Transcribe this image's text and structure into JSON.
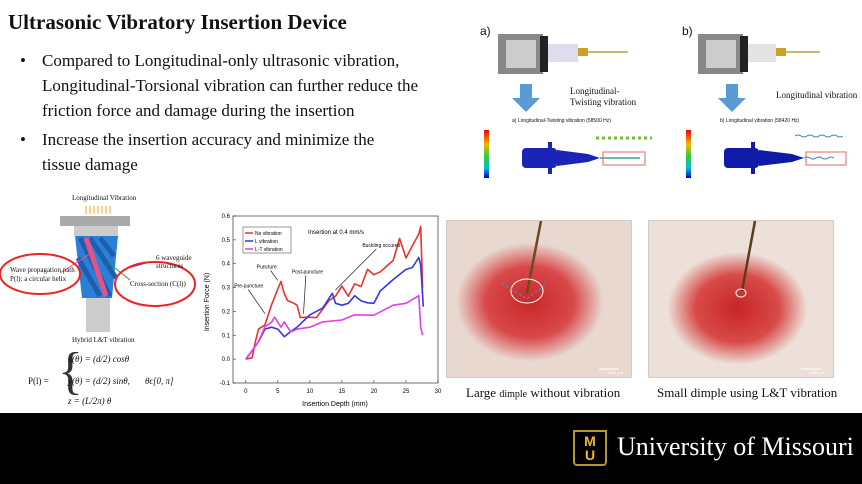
{
  "title": "Ultrasonic Vibratory Insertion Device",
  "bullets": [
    "Compared to Longitudinal-only ultrasonic vibration, Longitudinal-Torsional vibration can further reduce the friction force and damage during the insertion",
    "Increase the insertion accuracy and minimize the tissue damage"
  ],
  "diagram": {
    "top_label": "Longitudinal Vibration",
    "waveguide_label": "6 waveguide structures",
    "path_label": "Wave propagation path P(l): a circular helix",
    "cross_label": "Cross-section (C(l))",
    "bottom_label": "Hybrid L&T vibration",
    "eq_lhs": "P(l) =",
    "eq1": "x(θ) = (d/2) cosθ",
    "eq2": "y(θ) = (d/2) sinθ,",
    "eq3": "z = (L/2π) θ",
    "eq_range": "θϵ[0, π]"
  },
  "sim": {
    "a_label": "a)",
    "b_label": "b)",
    "a_arrow_text": "Longitudinal-Twisting vibration",
    "b_arrow_text": "Longitudinal vibration",
    "a_caption": "a) Longitudinal-Twisting vibration (58500 Hz)",
    "b_caption": "b) Longitudinal vibration (58420 Hz)"
  },
  "photos": {
    "left_caption_1": "Large ",
    "left_caption_2": "dimple",
    "left_caption_3": " without vibration",
    "right_caption": "Small dimple using L&T vibration",
    "scale_left": "1000 μm",
    "scale_right": "1000 μm"
  },
  "footer": {
    "university": "University of Missouri",
    "logo_text": "MU",
    "bg": "#000000",
    "gold": "#f1b82d"
  },
  "chart_data": {
    "type": "line",
    "title": "Insertion at 0.4 mm/s",
    "xlabel": "Insertion Depth (mm)",
    "ylabel": "Insertion Force (N)",
    "xlim": [
      -2,
      30
    ],
    "ylim": [
      -0.1,
      0.6
    ],
    "xticks": [
      0,
      5,
      10,
      15,
      20,
      25,
      30
    ],
    "yticks": [
      -0.1,
      0.0,
      0.1,
      0.2,
      0.3,
      0.4,
      0.5,
      0.6
    ],
    "legend": "top-left",
    "series": [
      {
        "name": "No vibration",
        "color": "#e8322d",
        "points": [
          [
            0,
            0
          ],
          [
            1,
            0
          ],
          [
            1.5,
            0.08
          ],
          [
            2,
            0.12
          ],
          [
            3,
            0.15
          ],
          [
            4,
            0.22
          ],
          [
            5,
            0.3
          ],
          [
            5.5,
            0.32
          ],
          [
            6,
            0.28
          ],
          [
            6.5,
            0.24
          ],
          [
            7.5,
            0.24
          ],
          [
            8,
            0.22
          ],
          [
            8.5,
            0.18
          ],
          [
            9.5,
            0.17
          ],
          [
            11,
            0.18
          ],
          [
            13,
            0.24
          ],
          [
            14,
            0.27
          ],
          [
            15,
            0.3
          ],
          [
            16,
            0.27
          ],
          [
            17,
            0.31
          ],
          [
            18,
            0.31
          ],
          [
            19,
            0.37
          ],
          [
            20,
            0.36
          ],
          [
            21,
            0.36
          ],
          [
            23,
            0.42
          ],
          [
            24,
            0.5
          ],
          [
            25,
            0.43
          ],
          [
            26,
            0.47
          ],
          [
            27,
            0.53
          ],
          [
            27.3,
            0.55
          ],
          [
            27.6,
            0.3
          ]
        ]
      },
      {
        "name": "L vibration",
        "color": "#3636e6",
        "points": [
          [
            0,
            0
          ],
          [
            1,
            0.03
          ],
          [
            2,
            0.08
          ],
          [
            3,
            0.12
          ],
          [
            4,
            0.14
          ],
          [
            5,
            0.12
          ],
          [
            6,
            0.1
          ],
          [
            7,
            0.11
          ],
          [
            8,
            0.14
          ],
          [
            10,
            0.18
          ],
          [
            12,
            0.22
          ],
          [
            13.5,
            0.27
          ],
          [
            14,
            0.24
          ],
          [
            15,
            0.22
          ],
          [
            16,
            0.24
          ],
          [
            17,
            0.26
          ],
          [
            18,
            0.25
          ],
          [
            19,
            0.23
          ],
          [
            20,
            0.24
          ],
          [
            21,
            0.28
          ],
          [
            23,
            0.34
          ],
          [
            25,
            0.37
          ],
          [
            26,
            0.39
          ],
          [
            27,
            0.42
          ],
          [
            27.3,
            0.4
          ],
          [
            27.7,
            0.22
          ]
        ]
      },
      {
        "name": "L-T vibration",
        "color": "#e040e8",
        "points": [
          [
            0,
            0
          ],
          [
            1,
            0.03
          ],
          [
            2,
            0.08
          ],
          [
            3,
            0.13
          ],
          [
            4,
            0.16
          ],
          [
            4.5,
            0.17
          ],
          [
            5.5,
            0.14
          ],
          [
            6,
            0.15
          ],
          [
            7,
            0.12
          ],
          [
            8,
            0.12
          ],
          [
            10,
            0.14
          ],
          [
            12,
            0.15
          ],
          [
            15,
            0.17
          ],
          [
            17,
            0.18
          ],
          [
            20,
            0.19
          ],
          [
            23,
            0.22
          ],
          [
            25,
            0.24
          ],
          [
            27,
            0.26
          ],
          [
            27.3,
            0.14
          ],
          [
            27.6,
            0.1
          ]
        ]
      }
    ],
    "annotations": [
      {
        "text": "Pre-puncture",
        "x": 1,
        "y": 0.3,
        "to": [
          3,
          0.19
        ]
      },
      {
        "text": "Puncture",
        "x": 4.5,
        "y": 0.38,
        "to": [
          5,
          0.33
        ]
      },
      {
        "text": "Post-puncture",
        "x": 10,
        "y": 0.36,
        "to": [
          9,
          0.19
        ]
      },
      {
        "text": "Buckling occured",
        "x": 21,
        "y": 0.47,
        "to": [
          14,
          0.29
        ]
      }
    ]
  }
}
